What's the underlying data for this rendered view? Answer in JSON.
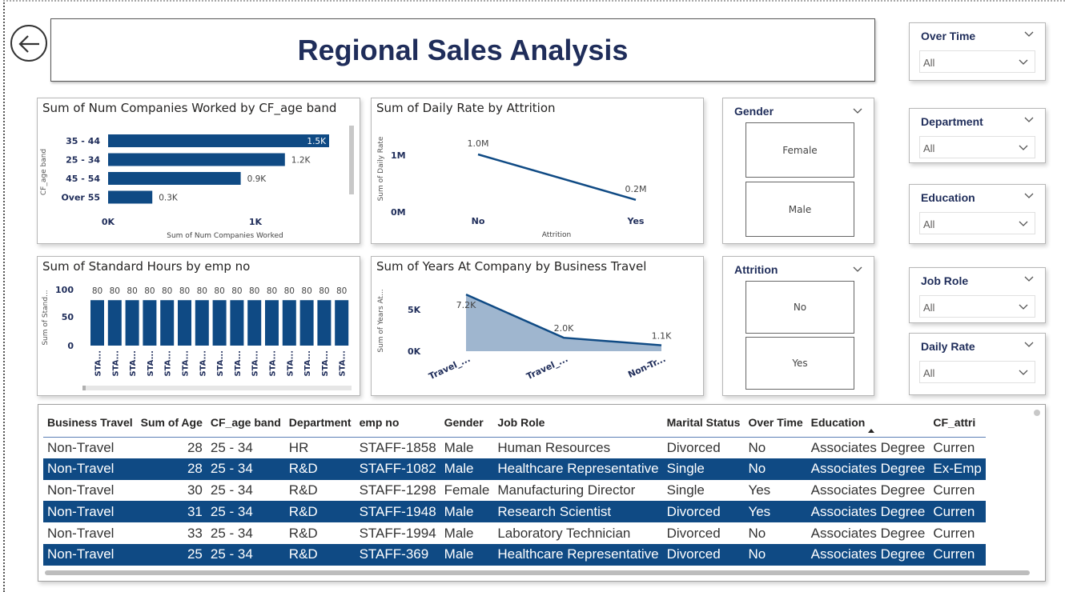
{
  "title": "Regional Sales Analysis",
  "colors": {
    "bar": "#0f4a84",
    "line": "#0f4a84",
    "area": "#9fb6cf",
    "title": "#1f2d5a"
  },
  "icons": {
    "back": "back-arrow-icon",
    "chevron": "chevron-down-icon"
  },
  "charts": {
    "companies": {
      "title": "Sum of Num Companies Worked by CF_age band",
      "ylabel": "CF_age band",
      "xlabel": "Sum of Num Companies Worked",
      "xticks": [
        "0K",
        "1K"
      ]
    },
    "daily_rate": {
      "title": "Sum of Daily Rate by Attrition",
      "ylabel": "Sum of Daily Rate",
      "xlabel": "Attrition",
      "yticks": [
        "1M",
        "0M"
      ]
    },
    "standard_hours": {
      "title": "Sum of Standard Hours by emp no",
      "ylabel": "Sum of Stand...",
      "yticks": [
        "100",
        "50",
        "0"
      ]
    },
    "years": {
      "title": "Sum of Years At Company by Business Travel",
      "ylabel": "Sum of Years At...",
      "yticks": [
        "5K",
        "0K"
      ]
    }
  },
  "chart_data": [
    {
      "type": "bar",
      "orientation": "horizontal",
      "title": "Sum of Num Companies Worked by CF_age band",
      "xlabel": "Sum of Num Companies Worked",
      "ylabel": "CF_age band",
      "categories": [
        "35 - 44",
        "25 - 34",
        "45 - 54",
        "Over 55"
      ],
      "values": [
        1500,
        1200,
        900,
        300
      ],
      "labels": [
        "1.5K",
        "1.2K",
        "0.9K",
        "0.3K"
      ],
      "xlim": [
        0,
        1500
      ]
    },
    {
      "type": "line",
      "title": "Sum of Daily Rate by Attrition",
      "xlabel": "Attrition",
      "ylabel": "Sum of Daily Rate",
      "categories": [
        "No",
        "Yes"
      ],
      "values": [
        1000000,
        200000
      ],
      "labels": [
        "1.0M",
        "0.2M"
      ],
      "ylim": [
        0,
        1300000
      ]
    },
    {
      "type": "bar",
      "title": "Sum of Standard Hours by emp no",
      "ylabel": "Sum of Stand...",
      "categories": [
        "STA...",
        "STA...",
        "STA...",
        "STA...",
        "STA...",
        "STA...",
        "STA...",
        "STA...",
        "STA...",
        "STA...",
        "STA...",
        "STA...",
        "STA...",
        "STA...",
        "STA..."
      ],
      "values": [
        80,
        80,
        80,
        80,
        80,
        80,
        80,
        80,
        80,
        80,
        80,
        80,
        80,
        80,
        80
      ],
      "labels": [
        "80",
        "80",
        "80",
        "80",
        "80",
        "80",
        "80",
        "80",
        "80",
        "80",
        "80",
        "80",
        "80",
        "80",
        "80"
      ],
      "ylim": [
        0,
        100
      ]
    },
    {
      "type": "area",
      "title": "Sum of Years At Company by Business Travel",
      "ylabel": "Sum of Years At...",
      "categories": [
        "Travel_...",
        "Travel_...",
        "Non-Tr..."
      ],
      "values": [
        7200,
        2000,
        1100
      ],
      "labels": [
        "7.2K",
        "2.0K",
        "1.1K"
      ],
      "ylim": [
        0,
        7500
      ]
    }
  ],
  "slicers": {
    "gender": {
      "title": "Gender",
      "options": [
        "Female",
        "Male"
      ]
    },
    "attrition": {
      "title": "Attrition",
      "options": [
        "No",
        "Yes"
      ]
    },
    "over_time": {
      "title": "Over Time",
      "value": "All"
    },
    "department": {
      "title": "Department",
      "value": "All"
    },
    "education": {
      "title": "Education",
      "value": "All"
    },
    "job_role": {
      "title": "Job Role",
      "value": "All"
    },
    "daily_rate": {
      "title": "Daily Rate",
      "value": "All"
    }
  },
  "table": {
    "columns": [
      "Business Travel",
      "Sum of Age",
      "CF_age band",
      "Department",
      "emp no",
      "Gender",
      "Job Role",
      "Marital Status",
      "Over Time",
      "Education",
      "CF_attri"
    ],
    "rows": [
      [
        "Non-Travel",
        "28",
        "25 - 34",
        "HR",
        "STAFF-1858",
        "Male",
        "Human Resources",
        "Divorced",
        "No",
        "Associates Degree",
        "Curren"
      ],
      [
        "Non-Travel",
        "28",
        "25 - 34",
        "R&D",
        "STAFF-1082",
        "Male",
        "Healthcare Representative",
        "Single",
        "No",
        "Associates Degree",
        "Ex-Emp"
      ],
      [
        "Non-Travel",
        "30",
        "25 - 34",
        "R&D",
        "STAFF-1298",
        "Female",
        "Manufacturing Director",
        "Single",
        "Yes",
        "Associates Degree",
        "Curren"
      ],
      [
        "Non-Travel",
        "31",
        "25 - 34",
        "R&D",
        "STAFF-1948",
        "Male",
        "Research Scientist",
        "Divorced",
        "Yes",
        "Associates Degree",
        "Curren"
      ],
      [
        "Non-Travel",
        "33",
        "25 - 34",
        "R&D",
        "STAFF-1994",
        "Male",
        "Laboratory Technician",
        "Divorced",
        "No",
        "Associates Degree",
        "Curren"
      ],
      [
        "Non-Travel",
        "25",
        "25 - 34",
        "R&D",
        "STAFF-369",
        "Male",
        "Healthcare Representative",
        "Divorced",
        "No",
        "Associates Degree",
        "Curren"
      ]
    ],
    "highlighted_rows": [
      1,
      3,
      5
    ]
  }
}
